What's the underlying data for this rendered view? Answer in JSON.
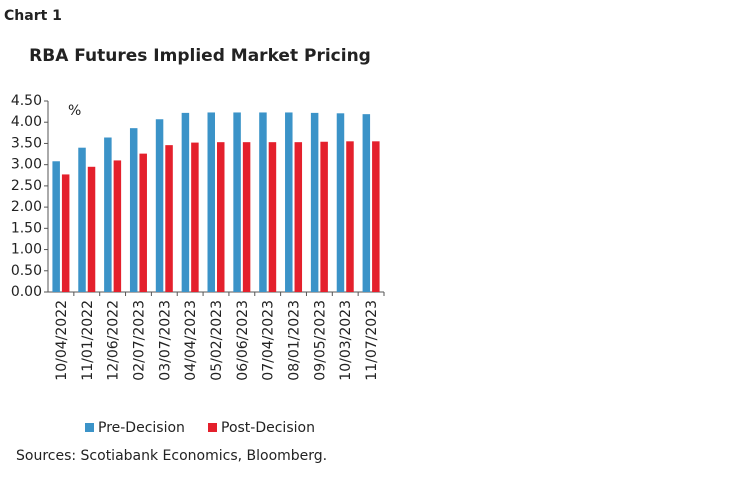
{
  "header": "Chart 1",
  "chart_data": {
    "type": "bar",
    "title": "RBA Futures Implied Market Pricing",
    "y_unit": "%",
    "categories": [
      "10/04/2022",
      "11/01/2022",
      "12/06/2022",
      "02/07/2023",
      "03/07/2023",
      "04/04/2023",
      "05/02/2023",
      "06/06/2023",
      "07/04/2023",
      "08/01/2023",
      "09/05/2023",
      "10/03/2023",
      "11/07/2023"
    ],
    "series": [
      {
        "name": "Pre-Decision",
        "color": "#3b93c8",
        "values": [
          3.08,
          3.4,
          3.64,
          3.86,
          4.07,
          4.22,
          4.23,
          4.23,
          4.23,
          4.23,
          4.22,
          4.21,
          4.19
        ]
      },
      {
        "name": "Post-Decision",
        "color": "#e4202c",
        "values": [
          2.77,
          2.95,
          3.1,
          3.26,
          3.46,
          3.52,
          3.53,
          3.53,
          3.53,
          3.53,
          3.54,
          3.55,
          3.55
        ]
      }
    ],
    "ylim": [
      0,
      4.5
    ],
    "yticks": [
      {
        "value": 0,
        "label": "0.00"
      },
      {
        "value": 0.5,
        "label": "0.50"
      },
      {
        "value": 1,
        "label": "1.00"
      },
      {
        "value": 1.5,
        "label": "1.50"
      },
      {
        "value": 2,
        "label": "2.00"
      },
      {
        "value": 2.5,
        "label": "2.50"
      },
      {
        "value": 3,
        "label": "3.00"
      },
      {
        "value": 3.5,
        "label": "3.50"
      },
      {
        "value": 4,
        "label": "4.00"
      },
      {
        "value": 4.5,
        "label": "4.50"
      }
    ],
    "grid": false,
    "source": "Sources: Scotiabank Economics, Bloomberg."
  }
}
